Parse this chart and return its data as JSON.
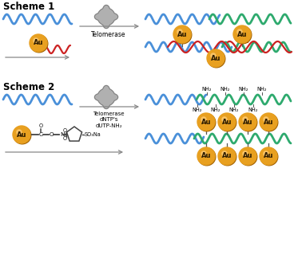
{
  "scheme1_label": "Scheme 1",
  "scheme2_label": "Scheme 2",
  "telomerase_label": "Telomerase",
  "telomerase2_label": "Telomerase\ndNTP's\ndUTP-NH₂",
  "au_label": "Au",
  "nh2_label": "NH₂",
  "blue_color": "#4A90D9",
  "green_color": "#2EAA6E",
  "red_color": "#CC2222",
  "gold_face": "#E8A020",
  "gold_edge": "#A06000",
  "gold_hi": "#FFD080",
  "gray_face": "#B0B0B0",
  "gray_edge": "#808080",
  "bg_color": "#FFFFFF",
  "arrow_color": "#888888",
  "text_color": "#000000",
  "line_color": "#444444",
  "wave_lw": 2.0,
  "wave_amp": 6,
  "wave_wl": 18
}
